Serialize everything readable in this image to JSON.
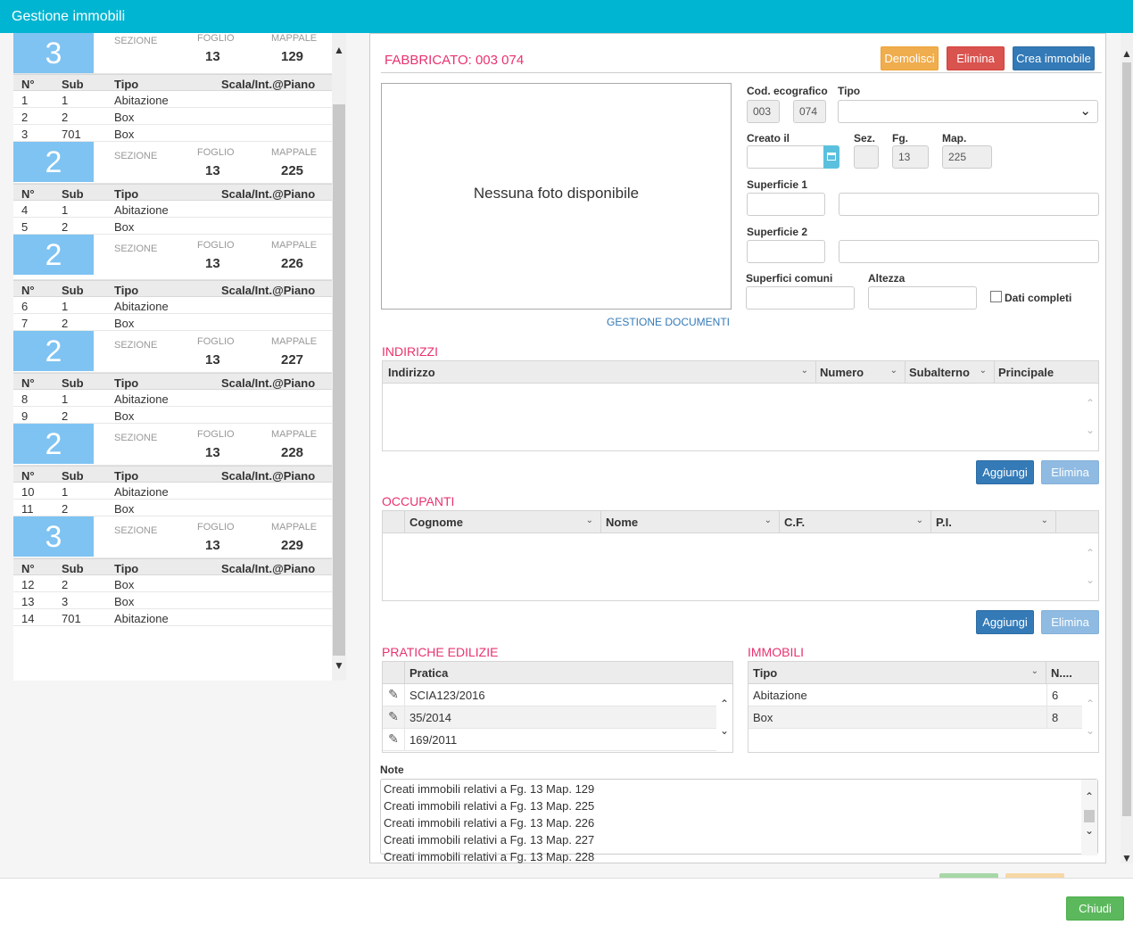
{
  "app": {
    "title": "Gestione immobili"
  },
  "left": {
    "labels": {
      "sezione": "SEZIONE",
      "foglio": "FOGLIO",
      "mappale": "MAPPALE"
    },
    "columns": {
      "n": "N°",
      "sub": "Sub",
      "tipo": "Tipo",
      "scala": "Scala/Int.@Piano"
    },
    "groups": [
      {
        "count": "3",
        "foglio": "13",
        "mappale": "129",
        "rows": [
          {
            "n": "1",
            "sub": "1",
            "tipo": "Abitazione"
          },
          {
            "n": "2",
            "sub": "2",
            "tipo": "Box"
          },
          {
            "n": "3",
            "sub": "701",
            "tipo": "Box"
          }
        ]
      },
      {
        "count": "2",
        "foglio": "13",
        "mappale": "225",
        "rows": [
          {
            "n": "4",
            "sub": "1",
            "tipo": "Abitazione"
          },
          {
            "n": "5",
            "sub": "2",
            "tipo": "Box"
          }
        ]
      },
      {
        "count": "2",
        "foglio": "13",
        "mappale": "226",
        "rows": [
          {
            "n": "6",
            "sub": "1",
            "tipo": "Abitazione"
          },
          {
            "n": "7",
            "sub": "2",
            "tipo": "Box"
          }
        ]
      },
      {
        "count": "2",
        "foglio": "13",
        "mappale": "227",
        "rows": [
          {
            "n": "8",
            "sub": "1",
            "tipo": "Abitazione"
          },
          {
            "n": "9",
            "sub": "2",
            "tipo": "Box"
          }
        ]
      },
      {
        "count": "2",
        "foglio": "13",
        "mappale": "228",
        "rows": [
          {
            "n": "10",
            "sub": "1",
            "tipo": "Abitazione"
          },
          {
            "n": "11",
            "sub": "2",
            "tipo": "Box"
          }
        ]
      },
      {
        "count": "3",
        "foglio": "13",
        "mappale": "229",
        "rows": [
          {
            "n": "12",
            "sub": "2",
            "tipo": "Box"
          },
          {
            "n": "13",
            "sub": "3",
            "tipo": "Box"
          },
          {
            "n": "14",
            "sub": "701",
            "tipo": "Abitazione"
          }
        ]
      }
    ]
  },
  "detail": {
    "title": "FABBRICATO: 003 074",
    "buttons": {
      "demolisci": "Demolisci",
      "elimina": "Elimina",
      "crea": "Crea immobile"
    },
    "photo": "Nessuna foto disponibile",
    "docs_link": "GESTIONE DOCUMENTI",
    "labels": {
      "cod": "Cod. ecografico",
      "tipo": "Tipo",
      "creato": "Creato il",
      "sez": "Sez.",
      "fg": "Fg.",
      "map": "Map.",
      "sup1": "Superficie 1",
      "sup2": "Superficie 2",
      "supcom": "Superfici comuni",
      "altezza": "Altezza",
      "completi": "Dati completi"
    },
    "values": {
      "cod1": "003",
      "cod2": "074",
      "fg": "13",
      "map": "225"
    }
  },
  "indirizzi": {
    "title": "INDIRIZZI",
    "columns": [
      "Indirizzo",
      "Numero",
      "Subalterno",
      "Principale"
    ],
    "add": "Aggiungi",
    "delete": "Elimina"
  },
  "occupanti": {
    "title": "OCCUPANTI",
    "columns": [
      "Cognome",
      "Nome",
      "C.F.",
      "P.I."
    ],
    "add": "Aggiungi",
    "delete": "Elimina"
  },
  "pratiche": {
    "title": "PRATICHE EDILIZIE",
    "column": "Pratica",
    "rows": [
      "SCIA123/2016",
      "35/2014",
      "169/2011"
    ]
  },
  "immobili": {
    "title": "IMMOBILI",
    "columns": [
      "Tipo",
      "N...."
    ],
    "rows": [
      {
        "tipo": "Abitazione",
        "n": "6"
      },
      {
        "tipo": "Box",
        "n": "8"
      }
    ]
  },
  "note": {
    "label": "Note",
    "lines": [
      "Creati immobili relativi a Fg. 13 Map. 129",
      "Creati immobili relativi a Fg. 13 Map. 225",
      "Creati immobili relativi a Fg. 13 Map. 226",
      "Creati immobili relativi a Fg. 13 Map. 227",
      "Creati immobili relativi a Fg. 13 Map. 228"
    ]
  },
  "footer": {
    "close": "Chiudi"
  }
}
